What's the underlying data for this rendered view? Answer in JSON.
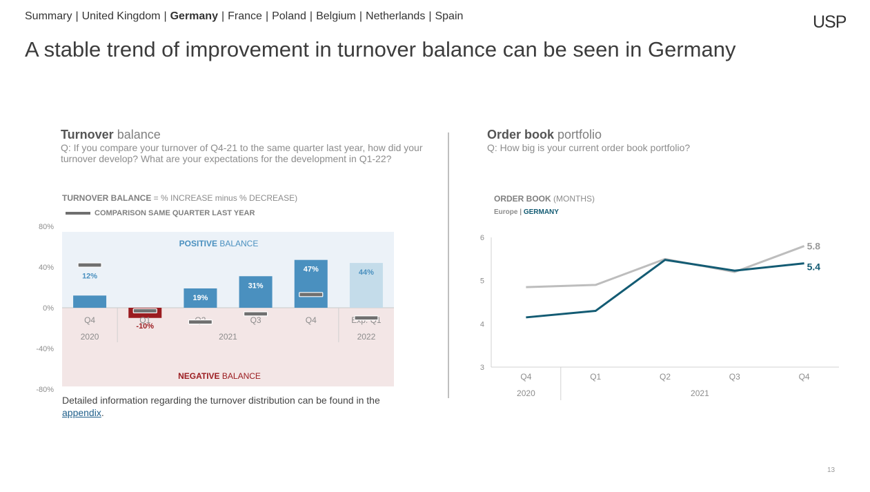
{
  "nav": {
    "items": [
      "Summary",
      "United Kingdom",
      "Germany",
      "France",
      "Poland",
      "Belgium",
      "Netherlands",
      "Spain"
    ],
    "active": "Germany"
  },
  "logo": "USP",
  "title": "A stable trend of improvement in turnover balance can be seen in Germany",
  "left": {
    "heading_bold": "Turnover",
    "heading_rest": " balance",
    "question": "Q: If you compare your turnover of Q4-21 to the same quarter last year, how did your turnover develop? What are your expectations for the development in Q1-22?",
    "legend_bold": "TURNOVER BALANCE",
    "legend_rest": " = % INCREASE minus % DECREASE)",
    "legend_comparison": "COMPARISON SAME QUARTER LAST YEAR",
    "footnote_text": "Detailed information regarding the turnover distribution can be found in the",
    "footnote_link": "appendix",
    "footnote_end": "."
  },
  "right": {
    "heading_bold": "Order book",
    "heading_rest": " portfolio",
    "question": "Q: How big is your current order book portfolio?",
    "legend_bold": "ORDER BOOK",
    "legend_rest": " (MONTHS)",
    "series_europe": "Europe",
    "series_germany": "GERMANY"
  },
  "page_number": "13",
  "colors": {
    "bar_positive": "#4a90bf",
    "bar_forecast": "#c4dcea",
    "bar_negative": "#9b1c20",
    "positive_bg": "#ecf2f8",
    "negative_bg": "#f3e6e6",
    "germany_line": "#135b73",
    "europe_line": "#bdbdbd",
    "comparison_marker": "#6f6f6f"
  },
  "chart_data": [
    {
      "type": "bar",
      "title": "Turnover balance",
      "categories": [
        "Q4",
        "Q1",
        "Q2",
        "Q3",
        "Q4",
        "Exp. Q1"
      ],
      "groups": [
        {
          "label": "2020",
          "categories": [
            "Q4"
          ]
        },
        {
          "label": "2021",
          "categories": [
            "Q1",
            "Q2",
            "Q3",
            "Q4"
          ]
        },
        {
          "label": "2022",
          "categories": [
            "Exp. Q1"
          ]
        }
      ],
      "values": [
        12,
        -10,
        19,
        31,
        47,
        44
      ],
      "value_labels": [
        "12%",
        "-10%",
        "19%",
        "31%",
        "47%",
        "44%"
      ],
      "forecast": [
        false,
        false,
        false,
        false,
        false,
        true
      ],
      "comparison_same_quarter_last_year": [
        42,
        -3,
        -14,
        -6,
        13,
        -10
      ],
      "yticks": [
        80,
        40,
        0,
        -40,
        -80
      ],
      "ytick_labels": [
        "80%",
        "40%",
        "0%",
        "-40%",
        "-80%"
      ],
      "ylim": [
        -80,
        80
      ],
      "region_labels": {
        "positive_bold": "POSITIVE",
        "positive_rest": " BALANCE",
        "negative_bold": "NEGATIVE",
        "negative_rest": " BALANCE"
      }
    },
    {
      "type": "line",
      "title": "Order book portfolio",
      "x": [
        "Q4",
        "Q1",
        "Q2",
        "Q3",
        "Q4"
      ],
      "groups": [
        {
          "label": "2020",
          "categories": [
            "Q4"
          ]
        },
        {
          "label": "2021",
          "categories": [
            "Q1",
            "Q2",
            "Q3",
            "Q4"
          ]
        }
      ],
      "series": [
        {
          "name": "Europe",
          "values": [
            4.85,
            4.9,
            5.5,
            5.2,
            5.8
          ],
          "end_label": "5.8"
        },
        {
          "name": "GERMANY",
          "values": [
            4.15,
            4.3,
            5.48,
            5.23,
            5.4
          ],
          "end_label": "5.4"
        }
      ],
      "yticks": [
        6,
        5,
        4,
        3
      ],
      "ylim": [
        3,
        6
      ]
    }
  ]
}
